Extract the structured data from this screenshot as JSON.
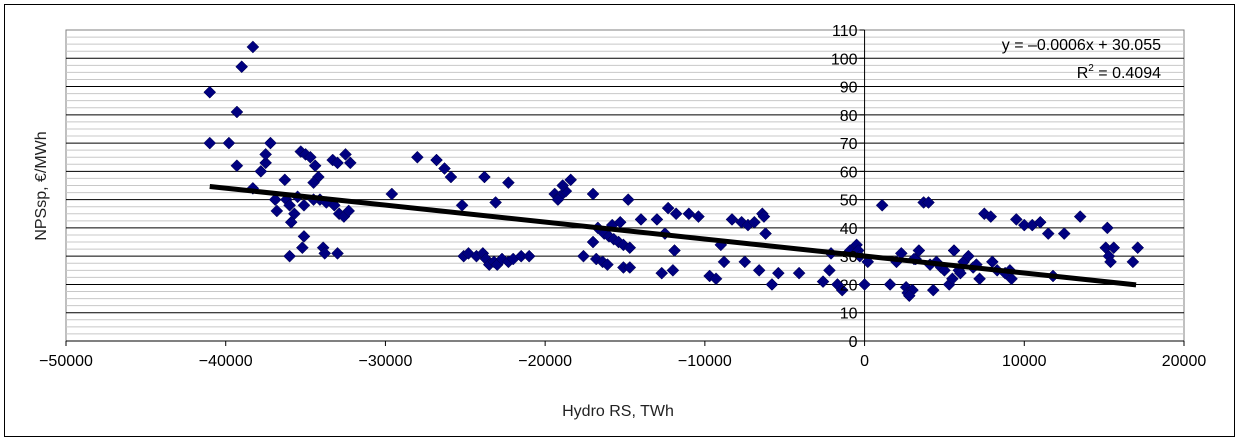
{
  "chart_data": {
    "type": "scatter",
    "title": "",
    "xlabel": "Hydro RS, TWh",
    "ylabel": "NPSsp, €/MWh",
    "xlim": [
      -50000,
      20000
    ],
    "ylim": [
      0,
      110
    ],
    "x_ticks": [
      -50000,
      -40000,
      -30000,
      -20000,
      -10000,
      0,
      10000,
      20000
    ],
    "x_tick_labels": [
      "−50000",
      "−40000",
      "−30000",
      "−20000",
      "−10000",
      "0",
      "10000",
      "20000"
    ],
    "y_ticks": [
      0,
      10,
      20,
      30,
      40,
      50,
      60,
      70,
      80,
      90,
      100,
      110
    ],
    "y_tick_labels": [
      "0",
      "10",
      "20",
      "30",
      "40",
      "50",
      "60",
      "70",
      "80",
      "90",
      "100",
      "110"
    ],
    "grid": "horizontal major and minor lines",
    "y_axis_position": "at x = 0",
    "marker_color": "#000080",
    "trendline_color": "#000000",
    "annotations": {
      "equation": "y = –0.0006x + 30.055",
      "r_squared_prefix": "R",
      "r_squared_exponent": "2",
      "r_squared_suffix": " = 0.4094"
    },
    "trendline": {
      "slope": -0.0006,
      "intercept": 30.055,
      "x_range": [
        -41000,
        17000
      ]
    },
    "points": [
      [
        -41000,
        88
      ],
      [
        -41000,
        70
      ],
      [
        -39000,
        97
      ],
      [
        -38300,
        104
      ],
      [
        -39300,
        81
      ],
      [
        -39800,
        70
      ],
      [
        -39300,
        62
      ],
      [
        -38300,
        54
      ],
      [
        -37200,
        70
      ],
      [
        -37500,
        63
      ],
      [
        -37800,
        60
      ],
      [
        -37500,
        66
      ],
      [
        -36300,
        57
      ],
      [
        -36900,
        50
      ],
      [
        -36800,
        46
      ],
      [
        -36200,
        50
      ],
      [
        -36000,
        48
      ],
      [
        -35700,
        45
      ],
      [
        -35900,
        42
      ],
      [
        -35300,
        67
      ],
      [
        -35000,
        66
      ],
      [
        -34700,
        65
      ],
      [
        -34400,
        62
      ],
      [
        -34200,
        58
      ],
      [
        -34500,
        56
      ],
      [
        -33300,
        64
      ],
      [
        -33000,
        63
      ],
      [
        -32500,
        66
      ],
      [
        -32200,
        63
      ],
      [
        -35100,
        37
      ],
      [
        -35200,
        33
      ],
      [
        -36000,
        30
      ],
      [
        -33900,
        33
      ],
      [
        -33800,
        31
      ],
      [
        -33000,
        31
      ],
      [
        -34100,
        50
      ],
      [
        -33700,
        49
      ],
      [
        -33200,
        48
      ],
      [
        -32900,
        45
      ],
      [
        -32600,
        44
      ],
      [
        -32300,
        46
      ],
      [
        -35500,
        51
      ],
      [
        -35100,
        48
      ],
      [
        -34500,
        50
      ],
      [
        -29600,
        52
      ],
      [
        -28000,
        65
      ],
      [
        -26800,
        64
      ],
      [
        -26300,
        61
      ],
      [
        -25900,
        58
      ],
      [
        -25200,
        48
      ],
      [
        -23800,
        58
      ],
      [
        -23100,
        49
      ],
      [
        -22300,
        56
      ],
      [
        -25100,
        30
      ],
      [
        -24800,
        31
      ],
      [
        -24300,
        30
      ],
      [
        -23900,
        31
      ],
      [
        -23700,
        29
      ],
      [
        -23500,
        27
      ],
      [
        -23200,
        28
      ],
      [
        -23000,
        27
      ],
      [
        -22700,
        29
      ],
      [
        -22300,
        28
      ],
      [
        -22000,
        29
      ],
      [
        -21500,
        30
      ],
      [
        -21000,
        30
      ],
      [
        -19400,
        52
      ],
      [
        -19100,
        51
      ],
      [
        -18700,
        53
      ],
      [
        -18400,
        57
      ],
      [
        -18900,
        55
      ],
      [
        -19200,
        50
      ],
      [
        -17000,
        52
      ],
      [
        -16700,
        40
      ],
      [
        -16300,
        38
      ],
      [
        -16000,
        37
      ],
      [
        -15700,
        36
      ],
      [
        -15400,
        35
      ],
      [
        -15100,
        34
      ],
      [
        -14700,
        33
      ],
      [
        -15800,
        41
      ],
      [
        -15300,
        42
      ],
      [
        -14800,
        50
      ],
      [
        -14000,
        43
      ],
      [
        -13000,
        43
      ],
      [
        -12500,
        38
      ],
      [
        -12300,
        47
      ],
      [
        -11800,
        45
      ],
      [
        -11000,
        45
      ],
      [
        -10400,
        44
      ],
      [
        -17000,
        35
      ],
      [
        -16800,
        29
      ],
      [
        -16400,
        28
      ],
      [
        -16100,
        27
      ],
      [
        -15100,
        26
      ],
      [
        -14700,
        26
      ],
      [
        -17600,
        30
      ],
      [
        -12700,
        24
      ],
      [
        -12000,
        25
      ],
      [
        -11900,
        32
      ],
      [
        -9700,
        23
      ],
      [
        -9300,
        22
      ],
      [
        -9000,
        34
      ],
      [
        -8800,
        28
      ],
      [
        -8300,
        43
      ],
      [
        -7700,
        42
      ],
      [
        -7300,
        41
      ],
      [
        -6900,
        42
      ],
      [
        -6400,
        45
      ],
      [
        -6200,
        38
      ],
      [
        -6300,
        44
      ],
      [
        -7500,
        28
      ],
      [
        -6600,
        25
      ],
      [
        -5800,
        20
      ],
      [
        -5400,
        24
      ],
      [
        -4100,
        24
      ],
      [
        -2600,
        21
      ],
      [
        -2200,
        25
      ],
      [
        -2100,
        31
      ],
      [
        -1700,
        20
      ],
      [
        -1400,
        18
      ],
      [
        -900,
        32
      ],
      [
        -500,
        34
      ],
      [
        -400,
        32
      ],
      [
        -300,
        30
      ],
      [
        0,
        20
      ],
      [
        200,
        28
      ],
      [
        1100,
        48
      ],
      [
        1600,
        20
      ],
      [
        2000,
        28
      ],
      [
        2300,
        31
      ],
      [
        2600,
        19
      ],
      [
        2700,
        17
      ],
      [
        3000,
        18
      ],
      [
        3200,
        29
      ],
      [
        3400,
        32
      ],
      [
        3700,
        49
      ],
      [
        4000,
        49
      ],
      [
        4300,
        18
      ],
      [
        4500,
        28
      ],
      [
        4800,
        26
      ],
      [
        5000,
        25
      ],
      [
        5300,
        20
      ],
      [
        5600,
        32
      ],
      [
        5900,
        25
      ],
      [
        6200,
        28
      ],
      [
        6500,
        30
      ],
      [
        6800,
        26
      ],
      [
        7200,
        22
      ],
      [
        7500,
        45
      ],
      [
        7900,
        44
      ],
      [
        8000,
        28
      ],
      [
        8300,
        25
      ],
      [
        8800,
        24
      ],
      [
        9200,
        22
      ],
      [
        9500,
        43
      ],
      [
        10000,
        41
      ],
      [
        10500,
        41
      ],
      [
        11000,
        42
      ],
      [
        11500,
        38
      ],
      [
        11800,
        23
      ],
      [
        12500,
        38
      ],
      [
        13500,
        44
      ],
      [
        15200,
        40
      ],
      [
        15100,
        33
      ],
      [
        15300,
        30
      ],
      [
        15400,
        28
      ],
      [
        15600,
        33
      ],
      [
        16800,
        28
      ],
      [
        17100,
        33
      ],
      [
        5500,
        22
      ],
      [
        6000,
        24
      ],
      [
        4100,
        27
      ],
      [
        3100,
        29
      ],
      [
        2800,
        16
      ],
      [
        9100,
        25
      ],
      [
        7000,
        27
      ]
    ]
  }
}
